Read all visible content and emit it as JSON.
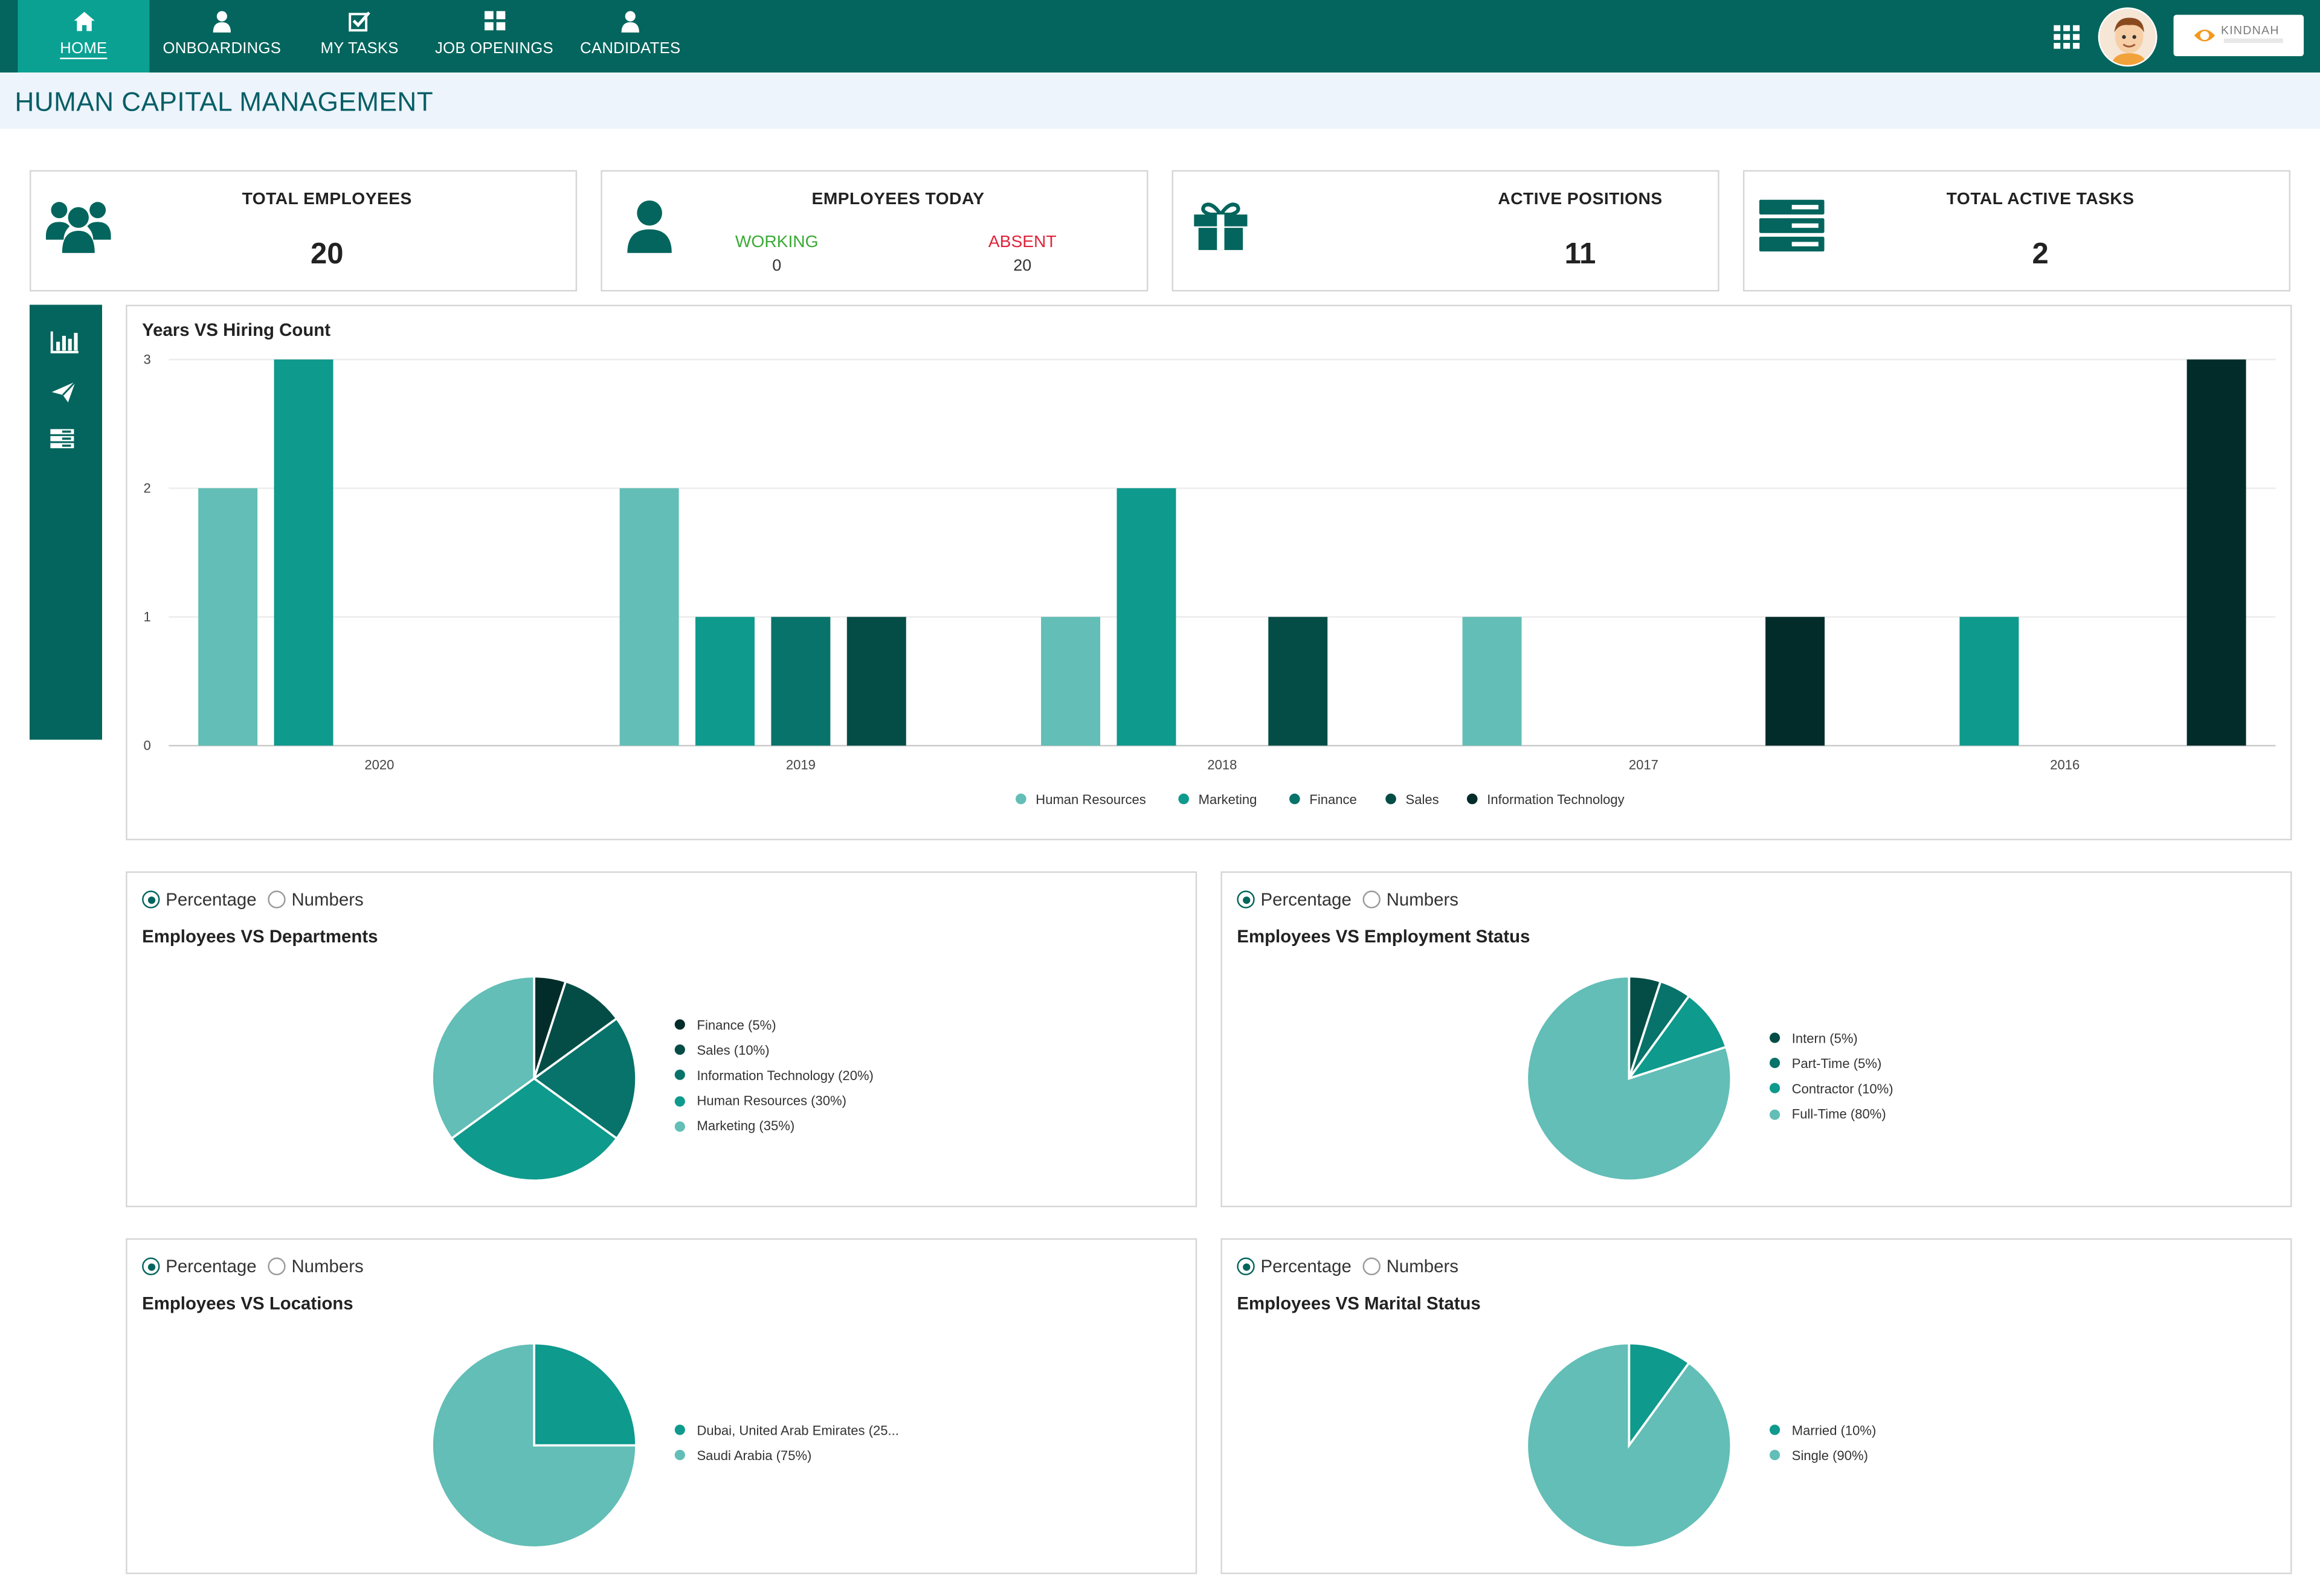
{
  "nav": {
    "items": [
      {
        "label": "HOME",
        "icon": "home-icon",
        "active": true
      },
      {
        "label": "ONBOARDINGS",
        "icon": "user-icon"
      },
      {
        "label": "MY TASKS",
        "icon": "checkbox-icon"
      },
      {
        "label": "JOB OPENINGS",
        "icon": "grid-icon"
      },
      {
        "label": "CANDIDATES",
        "icon": "user-icon"
      }
    ],
    "brand_text": "KINDNAH"
  },
  "page": {
    "title": "HUMAN CAPITAL MANAGEMENT"
  },
  "stats": {
    "total_employees": {
      "label": "TOTAL EMPLOYEES",
      "value": "20"
    },
    "employees_today": {
      "label": "EMPLOYEES TODAY",
      "working_label": "WORKING",
      "working_value": "0",
      "absent_label": "ABSENT",
      "absent_value": "20"
    },
    "active_positions": {
      "label": "ACTIVE POSITIONS",
      "value": "11"
    },
    "total_active_tasks": {
      "label": "TOTAL ACTIVE TASKS",
      "value": "2"
    }
  },
  "colors": {
    "primary": "#03655d",
    "accent": "#0aa193",
    "working": "#3aaa35",
    "absent": "#e0243a",
    "Human Resources": "#62beb6",
    "Marketing": "#0e9a8d",
    "Finance": "#08736a",
    "Sales": "#044d46",
    "Information Technology": "#022c29"
  },
  "radio": {
    "percentage": "Percentage",
    "numbers": "Numbers"
  },
  "chart_data": [
    {
      "type": "bar",
      "title": "Years VS Hiring Count",
      "categories": [
        "2020",
        "2019",
        "2018",
        "2017",
        "2016"
      ],
      "series": [
        {
          "name": "Human Resources",
          "values": [
            2,
            2,
            1,
            1,
            0
          ]
        },
        {
          "name": "Marketing",
          "values": [
            3,
            1,
            2,
            0,
            1
          ]
        },
        {
          "name": "Finance",
          "values": [
            0,
            1,
            0,
            0,
            0
          ]
        },
        {
          "name": "Sales",
          "values": [
            0,
            1,
            1,
            0,
            0
          ]
        },
        {
          "name": "Information Technology",
          "values": [
            0,
            0,
            0,
            1,
            3
          ]
        }
      ],
      "ylim": [
        0,
        3
      ],
      "yticks": [
        "0",
        "1",
        "2",
        "3"
      ],
      "grid": true,
      "legend": "bottom"
    },
    {
      "type": "pie",
      "title": "Employees VS Departments",
      "slices": [
        {
          "label": "Finance (5%)",
          "value": 5,
          "color": "#022c29"
        },
        {
          "label": "Sales (10%)",
          "value": 10,
          "color": "#044d46"
        },
        {
          "label": "Information Technology (20%)",
          "value": 20,
          "color": "#08736a"
        },
        {
          "label": "Human Resources (30%)",
          "value": 30,
          "color": "#0e9a8d"
        },
        {
          "label": "Marketing (35%)",
          "value": 35,
          "color": "#62beb6"
        }
      ],
      "legend": "right"
    },
    {
      "type": "pie",
      "title": "Employees VS Employment Status",
      "slices": [
        {
          "label": "Intern (5%)",
          "value": 5,
          "color": "#044d46"
        },
        {
          "label": "Part-Time (5%)",
          "value": 5,
          "color": "#08736a"
        },
        {
          "label": "Contractor (10%)",
          "value": 10,
          "color": "#0e9a8d"
        },
        {
          "label": "Full-Time (80%)",
          "value": 80,
          "color": "#62beb6"
        }
      ],
      "legend": "right"
    },
    {
      "type": "pie",
      "title": "Employees VS Locations",
      "slices": [
        {
          "label": "Dubai, United Arab Emirates (25...",
          "value": 25,
          "color": "#0e9a8d"
        },
        {
          "label": "Saudi Arabia (75%)",
          "value": 75,
          "color": "#62beb6"
        }
      ],
      "legend": "right"
    },
    {
      "type": "pie",
      "title": "Employees VS Marital Status",
      "slices": [
        {
          "label": "Married (10%)",
          "value": 10,
          "color": "#0e9a8d"
        },
        {
          "label": "Single (90%)",
          "value": 90,
          "color": "#62beb6"
        }
      ],
      "legend": "right"
    }
  ]
}
